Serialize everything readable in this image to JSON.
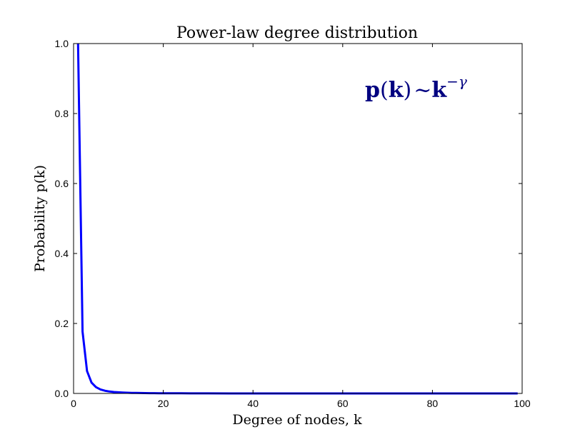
{
  "chart_data": {
    "type": "line",
    "title": "Power-law degree distribution",
    "xlabel": "Degree of nodes, k",
    "ylabel": "Probability p(k)",
    "xlim": [
      0,
      100
    ],
    "ylim": [
      0.0,
      1.0
    ],
    "xticks": [
      "0",
      "20",
      "40",
      "60",
      "80",
      "100"
    ],
    "yticks": [
      "0.0",
      "0.2",
      "0.4",
      "0.6",
      "0.8",
      "1.0"
    ],
    "grid": false,
    "line_color": "#0000ff",
    "annotation": {
      "base": "p",
      "arg": "k",
      "tilde": "~",
      "base2": "k",
      "exponent": "−γ",
      "color": "#000080"
    },
    "series": [
      {
        "x": [
          1,
          2,
          3,
          4,
          5,
          6,
          7,
          8,
          9,
          10,
          11,
          12,
          13,
          14,
          15,
          16,
          17,
          18,
          19,
          20,
          22,
          24,
          26,
          28,
          30,
          35,
          40,
          45,
          50,
          55,
          60,
          65,
          70,
          75,
          80,
          85,
          90,
          95,
          99
        ],
        "y": [
          1.0,
          0.177,
          0.064,
          0.031,
          0.018,
          0.0113,
          0.0077,
          0.0055,
          0.0041,
          0.0032,
          0.0025,
          0.002,
          0.0016,
          0.0014,
          0.0012,
          0.001,
          0.0008,
          0.0007,
          0.0006,
          0.0006,
          0.0005,
          0.0004,
          0.0003,
          0.0003,
          0.0002,
          0.0001,
          0.0001,
          0.0001,
          0.0001,
          0.0001,
          0.0001,
          0.0,
          0.0,
          0.0,
          0.0,
          0.0,
          0.0,
          0.0,
          0.0
        ]
      }
    ]
  }
}
